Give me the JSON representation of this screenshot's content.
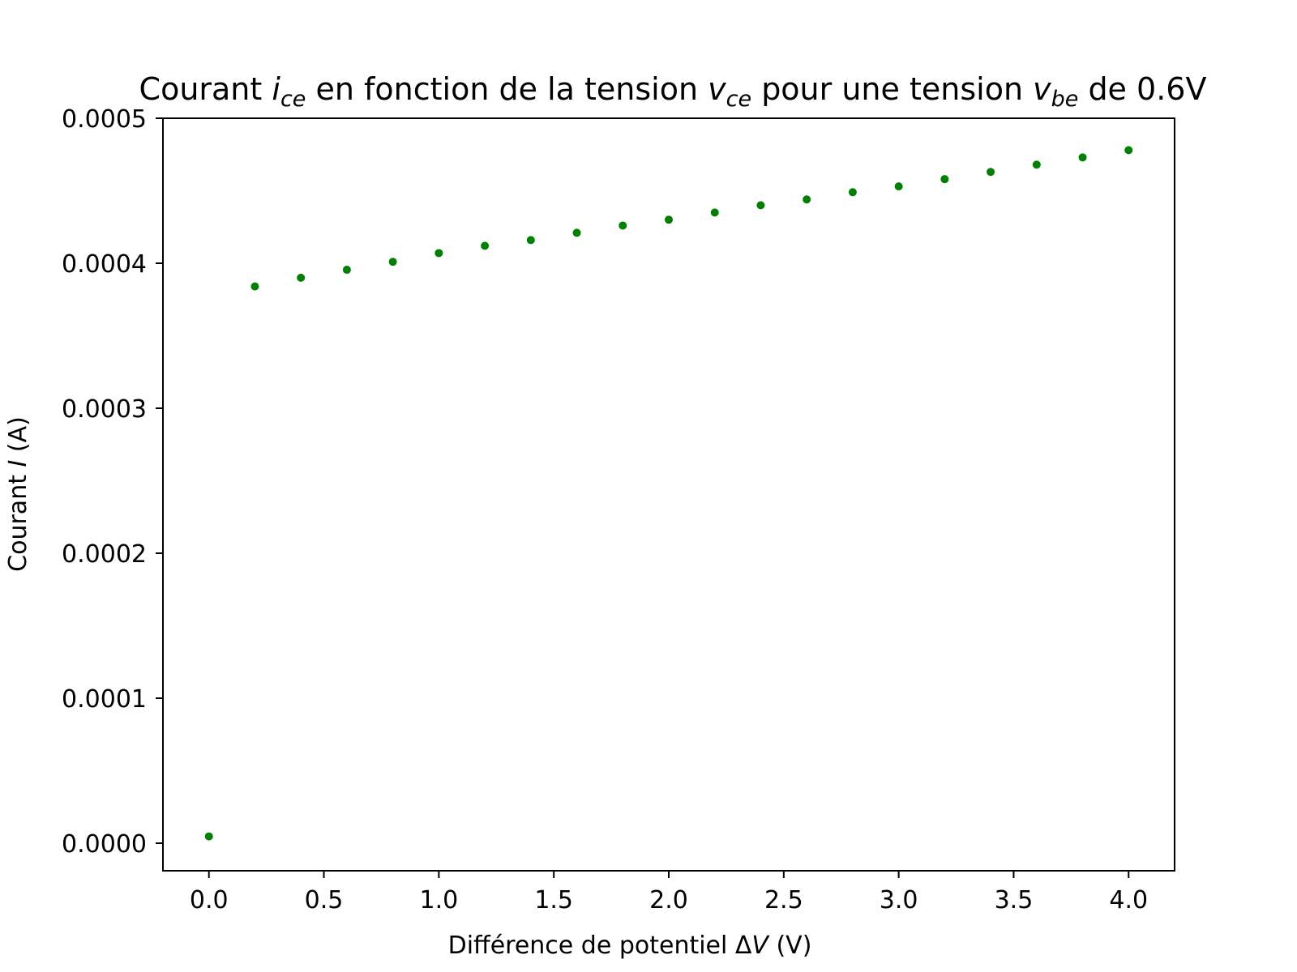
{
  "chart_data": {
    "type": "scatter",
    "title": {
      "prefix": "Courant ",
      "var1": "i",
      "sub1": "ce",
      "middle": " en fonction de la tension ",
      "var2": "v",
      "sub2": "ce",
      "middle2": " pour une tension ",
      "var3": "v",
      "sub3": "be",
      "suffix": " de 0.6V"
    },
    "xlabel": {
      "prefix": "Différence de potentiel Δ",
      "var": "V",
      "suffix": " (V)"
    },
    "ylabel": {
      "prefix": "Courant ",
      "var": "I",
      "suffix": " (A)"
    },
    "xlim": [
      -0.2,
      4.2
    ],
    "ylim": [
      -1.9e-05,
      0.0005
    ],
    "x_ticks": [
      "0.0",
      "0.5",
      "1.0",
      "1.5",
      "2.0",
      "2.5",
      "3.0",
      "3.5",
      "4.0"
    ],
    "x_tick_values": [
      0.0,
      0.5,
      1.0,
      1.5,
      2.0,
      2.5,
      3.0,
      3.5,
      4.0
    ],
    "y_ticks": [
      "0.0000",
      "0.0001",
      "0.0002",
      "0.0003",
      "0.0004",
      "0.0005"
    ],
    "y_tick_values": [
      0.0,
      0.0001,
      0.0002,
      0.0003,
      0.0004,
      0.0005
    ],
    "grid": false,
    "marker_color": "#008000",
    "series": [
      {
        "x": [
          0.0,
          0.2,
          0.4,
          0.6,
          0.8,
          1.0,
          1.2,
          1.4,
          1.6,
          1.8,
          2.0,
          2.2,
          2.4,
          2.6,
          2.8,
          3.0,
          3.2,
          3.4,
          3.6,
          3.8,
          4.0
        ],
        "y": [
          4.7e-06,
          0.000384,
          0.00039,
          0.0003955,
          0.000401,
          0.000407,
          0.000412,
          0.000416,
          0.000421,
          0.000426,
          0.00043,
          0.000435,
          0.00044,
          0.000444,
          0.000449,
          0.000453,
          0.000458,
          0.000463,
          0.000468,
          0.000473,
          0.000478
        ]
      }
    ]
  }
}
